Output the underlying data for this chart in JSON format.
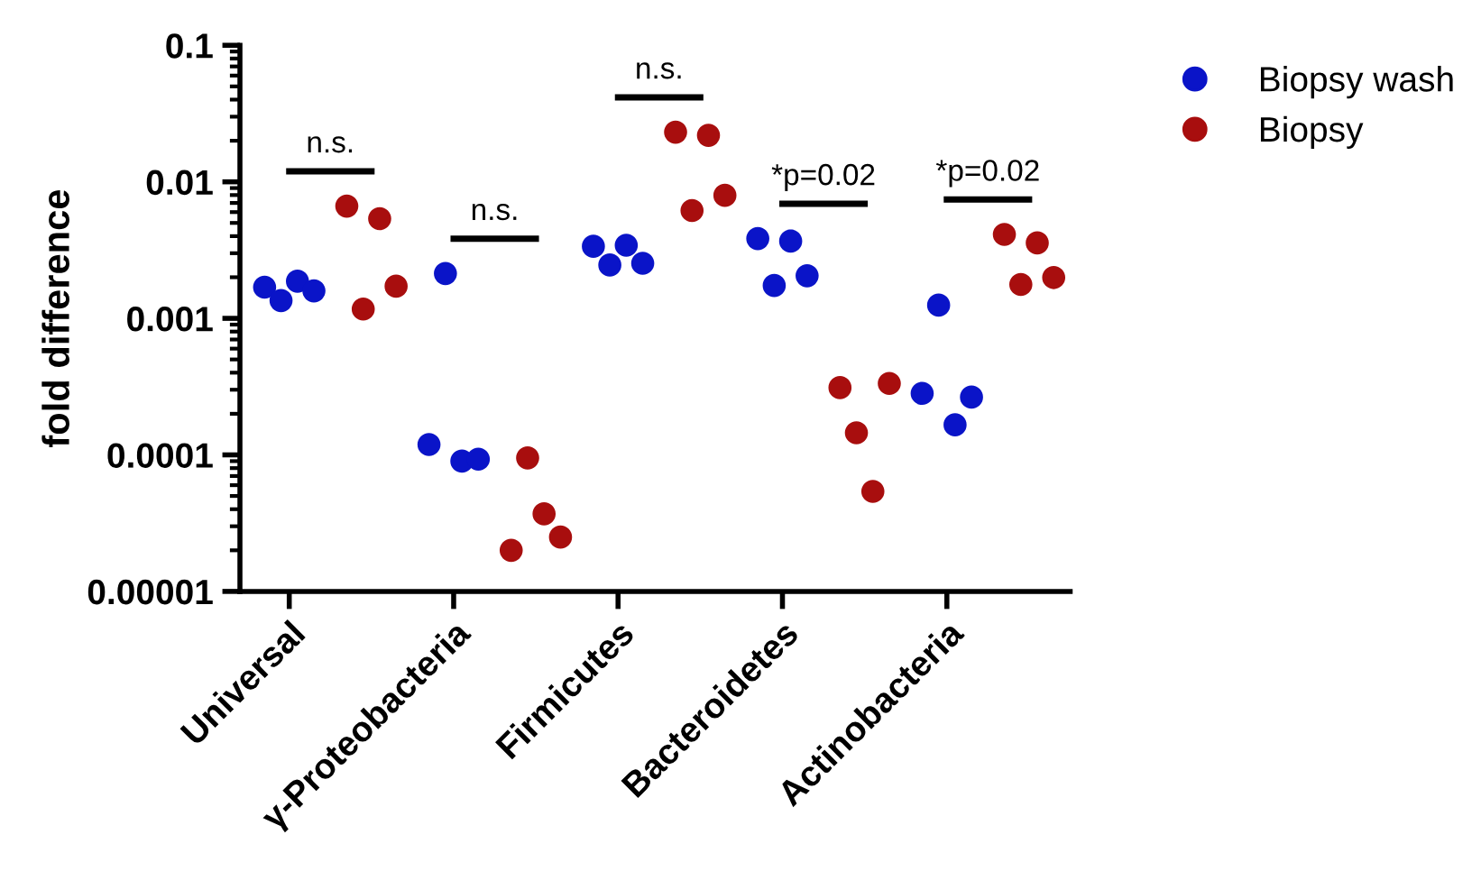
{
  "chart_data": {
    "type": "scatter",
    "ylabel": "fold difference",
    "log": "y",
    "marker": "circle",
    "legend": "top right",
    "grid": false,
    "categories": [
      "Universal",
      null,
      "γ-Proteobacteria",
      null,
      "Firmicutes",
      null,
      "Bacteroidetes",
      null,
      "Actinobacteria",
      null
    ],
    "ylim": [
      1e-05,
      0.1
    ],
    "yticks": [
      {
        "value": 0.1,
        "label": "0.1"
      },
      {
        "value": 0.01,
        "label": "0.01"
      },
      {
        "value": 0.001,
        "label": "0.001"
      },
      {
        "value": 0.0001,
        "label": "0.0001"
      },
      {
        "value": 1e-05,
        "label": "0.00001"
      }
    ],
    "series": [
      {
        "name": "Biopsy wash",
        "color": "#0a14c8",
        "values": [
          0.00169,
          null,
          0.000119,
          null,
          0.00337,
          null,
          0.00384,
          null,
          0.000282,
          null
        ]
      },
      {
        "color": "#0a14c8",
        "values": [
          0.00135,
          null,
          0.00213,
          null,
          0.00246,
          null,
          0.00174,
          null,
          0.00125,
          null
        ]
      },
      {
        "color": "#0a14c8",
        "values": [
          0.00187,
          null,
          9e-05,
          null,
          0.00343,
          null,
          0.00368,
          null,
          0.000166,
          null
        ]
      },
      {
        "color": "#0a14c8",
        "values": [
          0.00159,
          null,
          9.3e-05,
          null,
          0.00253,
          null,
          0.00205,
          null,
          0.000265,
          null
        ]
      },
      {
        "name": "Biopsy",
        "color": "#a80e0e",
        "values": [
          null,
          0.00664,
          null,
          2e-05,
          null,
          0.0231,
          null,
          0.000311,
          null,
          0.00412
        ]
      },
      {
        "color": "#a80e0e",
        "values": [
          null,
          0.00117,
          null,
          9.5e-05,
          null,
          0.00616,
          null,
          0.000145,
          null,
          0.00177
        ]
      },
      {
        "color": "#a80e0e",
        "values": [
          null,
          0.00537,
          null,
          3.7e-05,
          null,
          0.0219,
          null,
          5.4e-05,
          null,
          0.00357
        ]
      },
      {
        "color": "#a80e0e",
        "values": [
          null,
          0.00172,
          null,
          2.5e-05,
          null,
          0.00796,
          null,
          0.000334,
          null,
          0.00199
        ]
      }
    ],
    "annotations": [
      "n.s.",
      "n.s.",
      "n.s.",
      "*p=0.02",
      "*p=0.02"
    ]
  }
}
